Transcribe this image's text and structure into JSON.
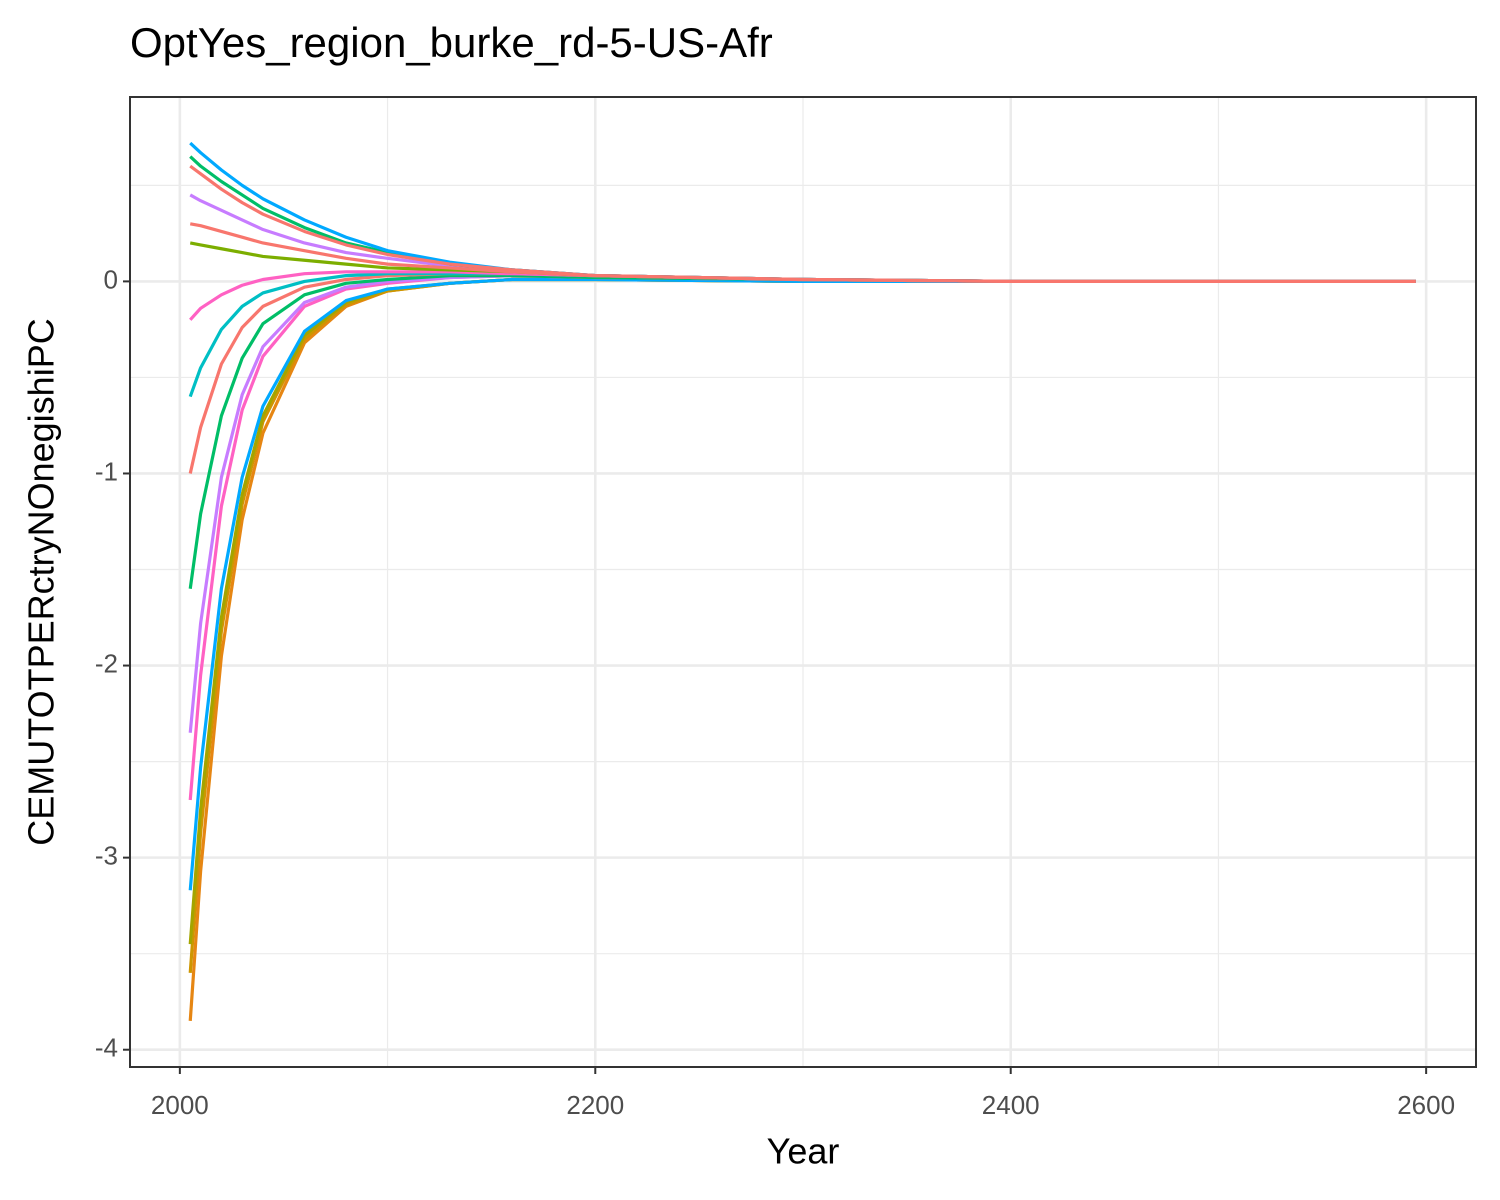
{
  "chart_data": {
    "type": "line",
    "title": "OptYes_region_burke_rd-5-US-Afr",
    "x_label": "Year",
    "y_label": "CEMUTOTPERctryNOnegishiPC",
    "x": [
      2005,
      2010,
      2020,
      2030,
      2040,
      2060,
      2080,
      2100,
      2130,
      2160,
      2200,
      2300,
      2400,
      2500,
      2595
    ],
    "series": [
      {
        "color": "#E68613",
        "values": [
          -3.85,
          -3.07,
          -1.95,
          -1.24,
          -0.79,
          -0.32,
          -0.13,
          -0.05,
          -0.01,
          0.01,
          0.01,
          0,
          0,
          0,
          0
        ]
      },
      {
        "color": "#CD9600",
        "values": [
          -3.6,
          -2.87,
          -1.82,
          -1.16,
          -0.73,
          -0.3,
          -0.12,
          -0.05,
          -0.01,
          0.01,
          0.01,
          0,
          0,
          0,
          0
        ]
      },
      {
        "color": "#A3A500",
        "values": [
          -3.45,
          -2.75,
          -1.75,
          -1.11,
          -0.7,
          -0.28,
          -0.11,
          -0.04,
          -0.01,
          0.01,
          0.01,
          0,
          0,
          0,
          0
        ]
      },
      {
        "color": "#00A9FF",
        "values": [
          -3.17,
          -2.53,
          -1.6,
          -1.02,
          -0.65,
          -0.26,
          -0.1,
          -0.04,
          -0.01,
          0.01,
          0.01,
          0,
          0,
          0,
          0
        ]
      },
      {
        "color": "#FF61C3",
        "values": [
          -2.7,
          -2.05,
          -1.17,
          -0.67,
          -0.39,
          -0.13,
          -0.04,
          -0.01,
          0.02,
          0.03,
          0.02,
          0.01,
          0,
          0,
          0
        ]
      },
      {
        "color": "#C77CFF",
        "values": [
          -2.35,
          -1.78,
          -1.02,
          -0.59,
          -0.34,
          -0.11,
          -0.03,
          0,
          0.02,
          0.03,
          0.02,
          0.01,
          0,
          0,
          0
        ]
      },
      {
        "color": "#00BE67",
        "values": [
          -1.6,
          -1.21,
          -0.7,
          -0.4,
          -0.22,
          -0.07,
          -0.01,
          0.01,
          0.03,
          0.03,
          0.02,
          0.01,
          0,
          0,
          0
        ]
      },
      {
        "color": "#F8766D",
        "values": [
          -1,
          -0.76,
          -0.43,
          -0.24,
          -0.13,
          -0.03,
          0.01,
          0.03,
          0.04,
          0.04,
          0.03,
          0.01,
          0,
          0,
          0
        ]
      },
      {
        "color": "#00BFC4",
        "values": [
          -0.6,
          -0.45,
          -0.25,
          -0.13,
          -0.06,
          0,
          0.03,
          0.04,
          0.04,
          0.04,
          0.03,
          0.01,
          0,
          0,
          0
        ]
      },
      {
        "color": "#FF61C3",
        "values": [
          -0.2,
          -0.14,
          -0.07,
          -0.02,
          0.01,
          0.04,
          0.05,
          0.05,
          0.05,
          0.04,
          0.03,
          0.01,
          0,
          0,
          0
        ]
      },
      {
        "color": "#7CAE00",
        "values": [
          0.2,
          0.19,
          0.17,
          0.15,
          0.13,
          0.11,
          0.09,
          0.07,
          0.06,
          0.05,
          0.03,
          0.01,
          0,
          0,
          0
        ]
      },
      {
        "color": "#C77CFF",
        "values": [
          0.45,
          0.42,
          0.37,
          0.32,
          0.27,
          0.2,
          0.15,
          0.12,
          0.08,
          0.06,
          0.03,
          0.01,
          0,
          0,
          0
        ]
      },
      {
        "color": "#00BE67",
        "values": [
          0.65,
          0.6,
          0.52,
          0.45,
          0.38,
          0.28,
          0.2,
          0.15,
          0.09,
          0.06,
          0.03,
          0.01,
          0,
          0,
          0
        ]
      },
      {
        "color": "#00A9FF",
        "values": [
          0.72,
          0.67,
          0.58,
          0.5,
          0.43,
          0.32,
          0.23,
          0.16,
          0.1,
          0.06,
          0.03,
          0.01,
          0,
          0,
          0
        ]
      },
      {
        "color": "#F8766D",
        "values": [
          0.6,
          0.56,
          0.48,
          0.41,
          0.35,
          0.26,
          0.19,
          0.14,
          0.09,
          0.06,
          0.03,
          0.01,
          0,
          0,
          0
        ]
      },
      {
        "color": "#F8766D",
        "values": [
          0.3,
          0.29,
          0.26,
          0.23,
          0.2,
          0.16,
          0.12,
          0.09,
          0.07,
          0.05,
          0.03,
          0.01,
          0,
          0,
          0
        ]
      }
    ],
    "xlim": [
      1976,
      2624
    ],
    "ylim": [
      -4.09,
      0.96
    ],
    "xticks": [
      2000,
      2200,
      2400,
      2600
    ],
    "yticks": [
      -4,
      -3,
      -2,
      -1,
      0
    ],
    "xminorticks": [
      2100,
      2300,
      2500
    ],
    "yminorticks": [
      -3.5,
      -2.5,
      -1.5,
      -0.5,
      0.5
    ],
    "grid": true
  }
}
